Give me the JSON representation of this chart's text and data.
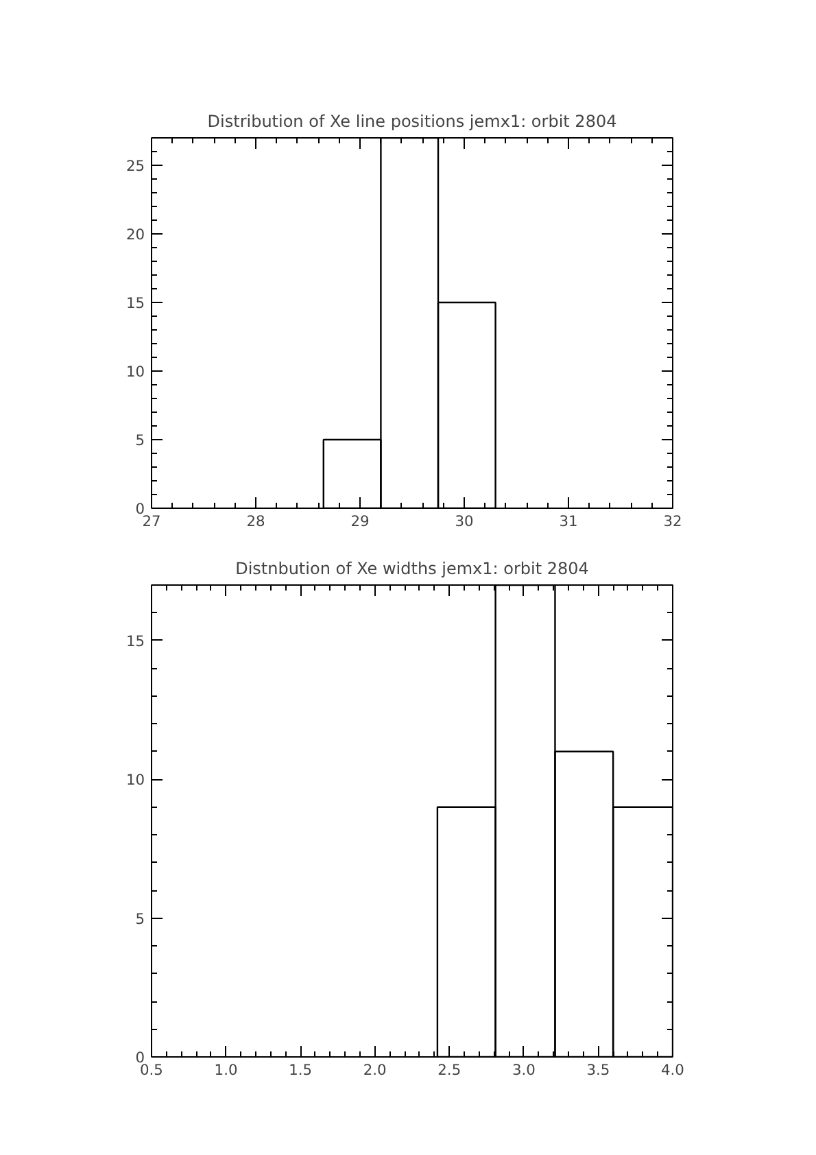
{
  "chart_data": [
    {
      "type": "histogram",
      "title": "Distribution of Xe line positions jemx1: orbit 2804",
      "bins": [
        28.65,
        29.2,
        29.75,
        30.3
      ],
      "values": [
        5,
        27,
        15
      ],
      "color": "#000000",
      "xlim": [
        27,
        32
      ],
      "xticks": [
        27,
        28,
        29,
        30,
        31,
        32
      ],
      "ylim": [
        0,
        27
      ],
      "yticks": [
        0,
        5,
        10,
        15,
        20,
        25
      ],
      "grid": false
    },
    {
      "type": "histogram",
      "title": "Distnbution of Xe widths jemx1: orbit 2804",
      "bins": [
        2.42,
        2.81,
        3.21,
        3.6,
        4.0
      ],
      "values": [
        9,
        17,
        11,
        9
      ],
      "color": "#000000",
      "xlim": [
        0.5,
        4.0
      ],
      "xticks": [
        0.5,
        {
          "value": 1,
          "label": "1.0"
        },
        1.5,
        {
          "value": 2,
          "label": "2.0"
        },
        2.5,
        {
          "value": 3,
          "label": "3.0"
        },
        3.5,
        {
          "value": 4,
          "label": "4.0"
        }
      ],
      "ylim": [
        0,
        17
      ],
      "yticks": [
        0,
        5,
        10,
        15
      ],
      "grid": false
    }
  ]
}
